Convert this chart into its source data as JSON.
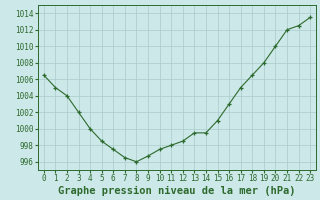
{
  "x": [
    0,
    1,
    2,
    3,
    4,
    5,
    6,
    7,
    8,
    9,
    10,
    11,
    12,
    13,
    14,
    15,
    16,
    17,
    18,
    19,
    20,
    21,
    22,
    23
  ],
  "y": [
    1006.5,
    1005.0,
    1004.0,
    1002.0,
    1000.0,
    998.5,
    997.5,
    996.5,
    996.0,
    996.7,
    997.5,
    998.0,
    998.5,
    999.5,
    999.5,
    1001.0,
    1003.0,
    1005.0,
    1006.5,
    1008.0,
    1010.0,
    1012.0,
    1012.5,
    1013.5
  ],
  "line_color": "#2d6a2d",
  "marker": "+",
  "marker_color": "#2d6a2d",
  "bg_color": "#cce8e8",
  "grid_color": "#aacccc",
  "xlabel": "Graphe pression niveau de la mer (hPa)",
  "xlabel_color": "#2d6a2d",
  "tick_color": "#2d6a2d",
  "ylim": [
    995,
    1015
  ],
  "yticks": [
    996,
    998,
    1000,
    1002,
    1004,
    1006,
    1008,
    1010,
    1012,
    1014
  ],
  "xticks": [
    0,
    1,
    2,
    3,
    4,
    5,
    6,
    7,
    8,
    9,
    10,
    11,
    12,
    13,
    14,
    15,
    16,
    17,
    18,
    19,
    20,
    21,
    22,
    23
  ],
  "tick_fontsize": 5.5,
  "xlabel_fontsize": 7.5
}
